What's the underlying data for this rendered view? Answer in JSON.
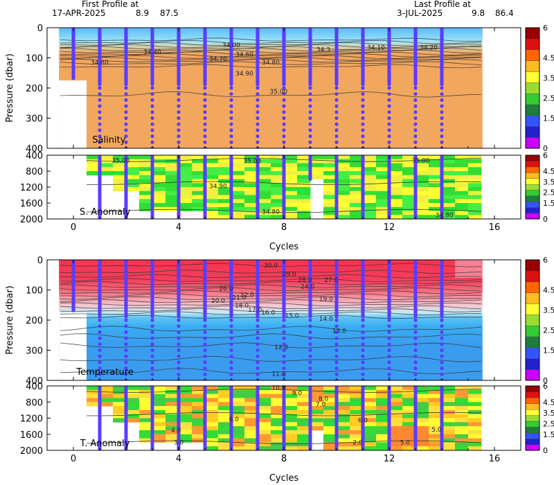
{
  "header": {
    "first_profile_label": "First Profile at",
    "first_profile_date": "17-APR-2025",
    "first_profile_lat": "8.9",
    "first_profile_lon": "87.5",
    "last_profile_label": "Last Profile at",
    "last_profile_date": "3-JUL-2025",
    "last_profile_lat": "9.8",
    "last_profile_lon": "86.4"
  },
  "chart_data": [
    {
      "type": "heatmap",
      "panel": "salinity",
      "title": "Salinity",
      "ylabel": "Pressure (dbar)",
      "xlim": [
        -1,
        17
      ],
      "ylim": [
        0,
        400
      ],
      "x_ticks": [
        "0",
        "4",
        "8",
        "12",
        "16"
      ],
      "y_ticks": [
        "0",
        "100",
        "200",
        "300",
        "400"
      ],
      "profile_cycles": [
        0,
        1,
        2,
        3,
        4,
        5,
        6,
        7,
        8,
        9,
        10,
        11,
        12,
        13,
        14
      ],
      "contours": [
        {
          "label": "34.00",
          "x": 6,
          "y": 58
        },
        {
          "label": "34.40",
          "x": 3,
          "y": 80
        },
        {
          "label": "34.60",
          "x": 6.5,
          "y": 88
        },
        {
          "label": "34.70",
          "x": 5.5,
          "y": 103
        },
        {
          "label": "34.80",
          "x": 7.5,
          "y": 115
        },
        {
          "label": "34.90",
          "x": 6.5,
          "y": 152
        },
        {
          "label": "34.80",
          "x": 1,
          "y": 115
        },
        {
          "label": "34.3",
          "x": 9.5,
          "y": 72
        },
        {
          "label": "34.10",
          "x": 11.5,
          "y": 65
        },
        {
          "label": "34.20",
          "x": 13.5,
          "y": 65
        },
        {
          "label": "35.00",
          "x": 7.8,
          "y": 212
        }
      ],
      "colorbar_ticks": [
        "6",
        "4.5",
        "3.5",
        "2.5",
        "1.5",
        "0"
      ]
    },
    {
      "type": "heatmap",
      "panel": "salinity_anomaly",
      "title": "S. Anomaly",
      "xlabel": "Cycles",
      "xlim": [
        -1,
        17
      ],
      "ylim": [
        400,
        2000
      ],
      "x_ticks": [
        "0",
        "4",
        "8",
        "12",
        "16"
      ],
      "y_ticks": [
        "400",
        "800",
        "1200",
        "1600",
        "2000"
      ],
      "contours": [
        {
          "label": "35.00",
          "x": 1.8,
          "y": 530
        },
        {
          "label": "35.00",
          "x": 6.8,
          "y": 550
        },
        {
          "label": "35.00",
          "x": 13.2,
          "y": 530
        },
        {
          "label": "34.90",
          "x": 5.5,
          "y": 1170
        },
        {
          "label": "34.80",
          "x": 7.5,
          "y": 1820
        },
        {
          "label": "34.80",
          "x": 14.1,
          "y": 1900
        }
      ],
      "colorbar_ticks": [
        "6",
        "4.5",
        "3.5",
        "2.5",
        "1.5",
        "0"
      ]
    },
    {
      "type": "heatmap",
      "panel": "temperature",
      "title": "Temperature",
      "ylabel": "Pressure (dbar)",
      "xlim": [
        -1,
        17
      ],
      "ylim": [
        0,
        400
      ],
      "x_ticks": [
        "0",
        "4",
        "8",
        "12",
        "16"
      ],
      "y_ticks": [
        "0",
        "100",
        "200",
        "300",
        "400"
      ],
      "contours": [
        {
          "label": "30.0",
          "x": 7.5,
          "y": 18
        },
        {
          "label": "29.0",
          "x": 8.2,
          "y": 47
        },
        {
          "label": "28.0",
          "x": 8.8,
          "y": 67
        },
        {
          "label": "27.0",
          "x": 9.8,
          "y": 67
        },
        {
          "label": "26.0",
          "x": 5.8,
          "y": 95
        },
        {
          "label": "24.0",
          "x": 8.9,
          "y": 88
        },
        {
          "label": "22.0",
          "x": 6.6,
          "y": 116
        },
        {
          "label": "21.0",
          "x": 6.3,
          "y": 125
        },
        {
          "label": "20.0",
          "x": 5.5,
          "y": 136
        },
        {
          "label": "18.0",
          "x": 6.4,
          "y": 152
        },
        {
          "label": "19.0",
          "x": 9.6,
          "y": 130
        },
        {
          "label": "17.0",
          "x": 6.9,
          "y": 166
        },
        {
          "label": "16.0",
          "x": 7.4,
          "y": 175
        },
        {
          "label": "15.0",
          "x": 8.3,
          "y": 185
        },
        {
          "label": "14.0",
          "x": 9.6,
          "y": 195
        },
        {
          "label": "13.0",
          "x": 10.1,
          "y": 236
        },
        {
          "label": "12.0",
          "x": 7.9,
          "y": 290
        },
        {
          "label": "11.0",
          "x": 7.8,
          "y": 378
        }
      ],
      "colorbar_ticks": [
        "6",
        "4.5",
        "3.5",
        "2.5",
        "1.5",
        "0"
      ]
    },
    {
      "type": "heatmap",
      "panel": "temperature_anomaly",
      "title": "T. Anomaly",
      "xlabel": "Cycles",
      "xlim": [
        -1,
        17
      ],
      "ylim": [
        400,
        2000
      ],
      "x_ticks": [
        "0",
        "4",
        "8",
        "12",
        "16"
      ],
      "y_ticks": [
        "400",
        "800",
        "1200",
        "1600",
        "2000"
      ],
      "contours": [
        {
          "label": "10.0",
          "x": 7.8,
          "y": 440
        },
        {
          "label": "9.0",
          "x": 8.5,
          "y": 580
        },
        {
          "label": "8.0",
          "x": 9.5,
          "y": 720
        },
        {
          "label": "7.0",
          "x": 9.4,
          "y": 860
        },
        {
          "label": "6.0",
          "x": 6.1,
          "y": 1230
        },
        {
          "label": "6.0",
          "x": 11.0,
          "y": 1250
        },
        {
          "label": "5.0",
          "x": 13.8,
          "y": 1480
        },
        {
          "label": "4.0",
          "x": 3.9,
          "y": 1500
        },
        {
          "label": "3.0",
          "x": 4.0,
          "y": 1800
        },
        {
          "label": "2.0",
          "x": 10.8,
          "y": 1800
        },
        {
          "label": "5.0",
          "x": 12.6,
          "y": 1800
        }
      ],
      "colorbar_ticks": [
        "6",
        "4.5",
        "3.5",
        "2.5",
        "1.5",
        "0"
      ]
    }
  ],
  "colors": {
    "colorbar": [
      "#cc00ff",
      "#2222cc",
      "#3355ff",
      "#1f7d3c",
      "#33cc33",
      "#99dd33",
      "#ffff33",
      "#ffbb22",
      "#ff6600",
      "#dd1111",
      "#990000"
    ],
    "profile_dots": "#5a3dff"
  }
}
